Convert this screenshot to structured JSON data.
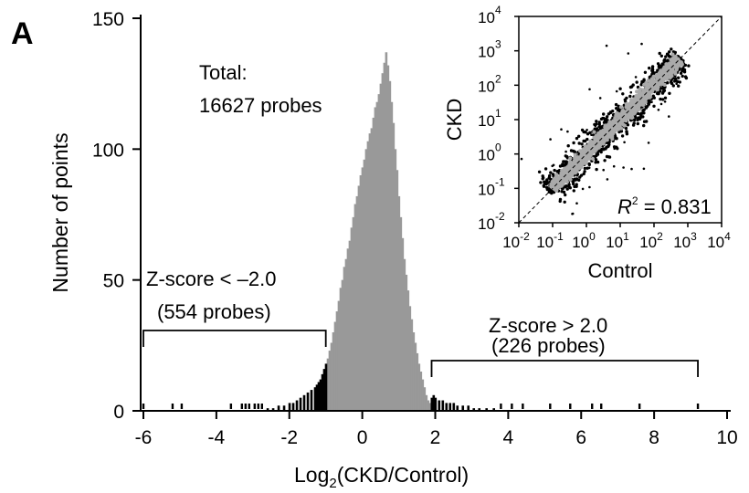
{
  "panel_label": "A",
  "chart_data": [
    {
      "type": "bar",
      "subtype": "histogram",
      "xlabel_main": "Log",
      "xlabel_sub": "2",
      "xlabel_rest": "(CKD/Control)",
      "ylabel": "Number of points",
      "xlim": [
        -6,
        10
      ],
      "ylim": [
        0,
        150
      ],
      "xticks": [
        "-6",
        "-4",
        "-2",
        "0",
        "2",
        "4",
        "6",
        "8",
        "10"
      ],
      "yticks": [
        "0",
        "50",
        "100",
        "150"
      ],
      "bin_width": 0.05,
      "bins_center": [
        {
          "x": -0.95,
          "y": 20
        },
        {
          "x": -0.9,
          "y": 23
        },
        {
          "x": -0.85,
          "y": 26
        },
        {
          "x": -0.8,
          "y": 30
        },
        {
          "x": -0.75,
          "y": 34
        },
        {
          "x": -0.7,
          "y": 38
        },
        {
          "x": -0.65,
          "y": 42
        },
        {
          "x": -0.6,
          "y": 47
        },
        {
          "x": -0.55,
          "y": 50
        },
        {
          "x": -0.5,
          "y": 55
        },
        {
          "x": -0.45,
          "y": 58
        },
        {
          "x": -0.4,
          "y": 62
        },
        {
          "x": -0.35,
          "y": 65
        },
        {
          "x": -0.3,
          "y": 70
        },
        {
          "x": -0.25,
          "y": 74
        },
        {
          "x": -0.2,
          "y": 79
        },
        {
          "x": -0.15,
          "y": 82
        },
        {
          "x": -0.1,
          "y": 86
        },
        {
          "x": -0.05,
          "y": 90
        },
        {
          "x": 0.0,
          "y": 93
        },
        {
          "x": 0.05,
          "y": 96
        },
        {
          "x": 0.1,
          "y": 100
        },
        {
          "x": 0.15,
          "y": 103
        },
        {
          "x": 0.2,
          "y": 106
        },
        {
          "x": 0.25,
          "y": 108
        },
        {
          "x": 0.3,
          "y": 112
        },
        {
          "x": 0.35,
          "y": 116
        },
        {
          "x": 0.4,
          "y": 118
        },
        {
          "x": 0.45,
          "y": 121
        },
        {
          "x": 0.5,
          "y": 125
        },
        {
          "x": 0.55,
          "y": 129
        },
        {
          "x": 0.6,
          "y": 133
        },
        {
          "x": 0.65,
          "y": 137
        },
        {
          "x": 0.7,
          "y": 132
        },
        {
          "x": 0.75,
          "y": 126
        },
        {
          "x": 0.8,
          "y": 118
        },
        {
          "x": 0.85,
          "y": 110
        },
        {
          "x": 0.9,
          "y": 100
        },
        {
          "x": 0.95,
          "y": 92
        },
        {
          "x": 1.0,
          "y": 82
        },
        {
          "x": 1.05,
          "y": 74
        },
        {
          "x": 1.1,
          "y": 66
        },
        {
          "x": 1.15,
          "y": 58
        },
        {
          "x": 1.2,
          "y": 52
        },
        {
          "x": 1.25,
          "y": 46
        },
        {
          "x": 1.3,
          "y": 40
        },
        {
          "x": 1.35,
          "y": 35
        },
        {
          "x": 1.4,
          "y": 30
        },
        {
          "x": 1.45,
          "y": 26
        },
        {
          "x": 1.5,
          "y": 22
        },
        {
          "x": 1.55,
          "y": 18
        },
        {
          "x": 1.6,
          "y": 15
        },
        {
          "x": 1.65,
          "y": 12
        },
        {
          "x": 1.7,
          "y": 9
        },
        {
          "x": 1.75,
          "y": 6
        },
        {
          "x": 1.8,
          "y": 4
        },
        {
          "x": 1.85,
          "y": 3
        }
      ],
      "bins_low_tail": [
        {
          "x": -2.6,
          "y": 1
        },
        {
          "x": -2.45,
          "y": 1
        },
        {
          "x": -2.3,
          "y": 2
        },
        {
          "x": -2.15,
          "y": 2
        },
        {
          "x": -2.0,
          "y": 3
        },
        {
          "x": -1.9,
          "y": 3
        },
        {
          "x": -1.8,
          "y": 4
        },
        {
          "x": -1.7,
          "y": 5
        },
        {
          "x": -1.6,
          "y": 6
        },
        {
          "x": -1.5,
          "y": 7
        },
        {
          "x": -1.4,
          "y": 8
        },
        {
          "x": -1.3,
          "y": 9
        },
        {
          "x": -1.25,
          "y": 10
        },
        {
          "x": -1.2,
          "y": 11
        },
        {
          "x": -1.15,
          "y": 12
        },
        {
          "x": -1.1,
          "y": 14
        },
        {
          "x": -1.05,
          "y": 16
        },
        {
          "x": -1.0,
          "y": 18
        }
      ],
      "bins_high_tail": [
        {
          "x": 1.9,
          "y": 5
        },
        {
          "x": 1.95,
          "y": 6
        },
        {
          "x": 2.0,
          "y": 5
        },
        {
          "x": 2.1,
          "y": 4
        },
        {
          "x": 2.2,
          "y": 4
        },
        {
          "x": 2.3,
          "y": 3
        },
        {
          "x": 2.4,
          "y": 3
        },
        {
          "x": 2.5,
          "y": 3
        },
        {
          "x": 2.6,
          "y": 2
        },
        {
          "x": 2.75,
          "y": 2
        },
        {
          "x": 2.9,
          "y": 2
        },
        {
          "x": 3.05,
          "y": 1
        },
        {
          "x": 3.2,
          "y": 1
        },
        {
          "x": 3.4,
          "y": 1
        },
        {
          "x": 3.6,
          "y": 1
        }
      ],
      "outlier_ticks": [
        -6.0,
        -5.2,
        -4.95,
        -3.6,
        -3.3,
        -3.2,
        -3.1,
        -2.95,
        -2.85,
        -2.75,
        3.8,
        4.1,
        4.4,
        5.15,
        5.7,
        6.3,
        6.55,
        7.6,
        9.2
      ],
      "annotations": {
        "total_line1": "Total:",
        "total_line2": "16627 probes",
        "low_line1": "Z-score < –2.0",
        "low_line2": "(554 probes)",
        "high_line1": "Z-score > 2.0",
        "high_line2": "(226 probes)"
      },
      "brackets": {
        "low": [
          -6,
          -1
        ],
        "high": [
          1.9,
          9.2
        ]
      },
      "colors": {
        "center": "#999999",
        "tails": "#000000"
      }
    },
    {
      "type": "scatter",
      "scale": "log",
      "xlabel": "Control",
      "ylabel": "CKD",
      "xlim_exp": [
        -2,
        4
      ],
      "ylim_exp": [
        -2,
        4
      ],
      "tick_base": "10",
      "tick_exps": [
        "-2",
        "-1",
        "0",
        "1",
        "2",
        "3",
        "4"
      ],
      "r2_label": "R",
      "r2_sup": "2",
      "r2_value": " = 0.831",
      "diagonal": "y = x (dashed)",
      "colors": {
        "bulk": "#aaaaaa",
        "outliers": "#000000"
      }
    }
  ]
}
